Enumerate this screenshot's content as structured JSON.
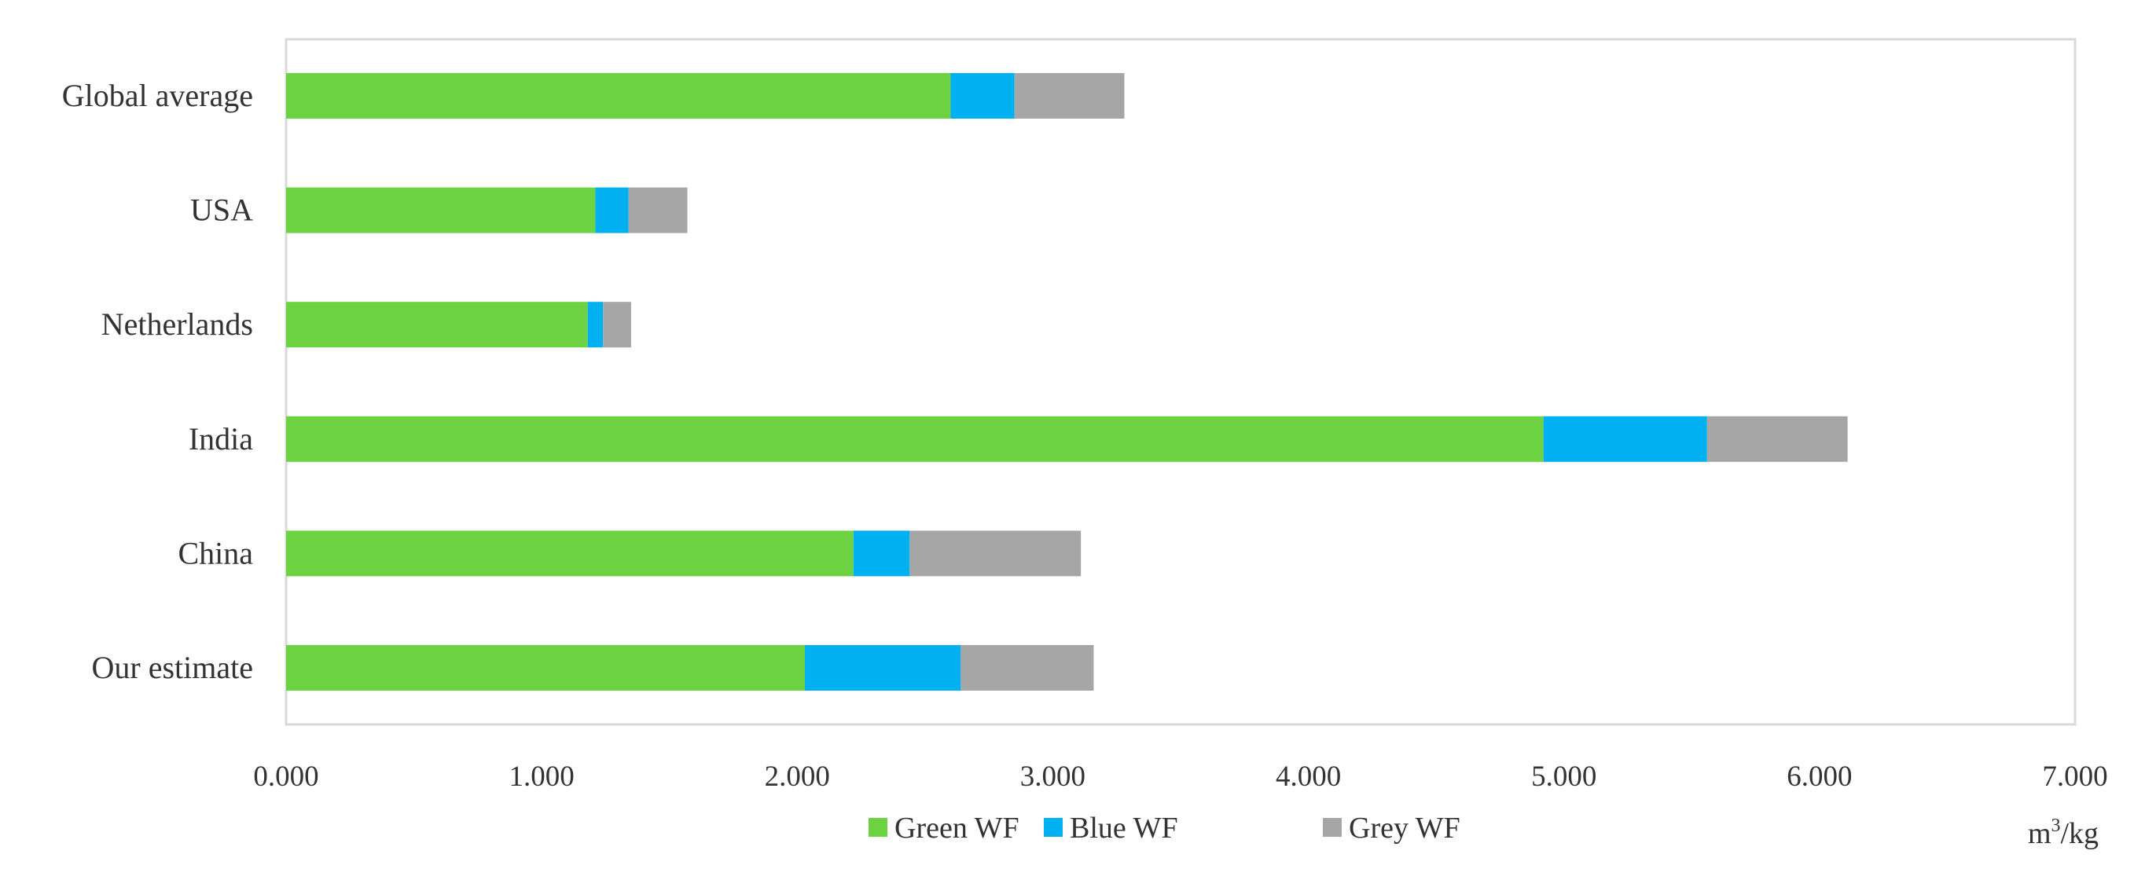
{
  "chart_data": {
    "type": "bar",
    "orientation": "horizontal",
    "stacked": true,
    "categories": [
      "Global average",
      "USA",
      "Netherlands",
      "India",
      "China",
      "Our estimate"
    ],
    "series": [
      {
        "name": "Green WF",
        "color": "#6dd343",
        "values": [
          2.6,
          1.21,
          1.18,
          4.92,
          2.22,
          2.03
        ]
      },
      {
        "name": "Blue WF",
        "color": "#00b0f0",
        "values": [
          0.25,
          0.13,
          0.06,
          0.64,
          0.22,
          0.61
        ]
      },
      {
        "name": "Grey WF",
        "color": "#a6a6a6",
        "values": [
          0.43,
          0.23,
          0.11,
          0.55,
          0.67,
          0.52
        ]
      }
    ],
    "x_ticks": [
      "0.000",
      "1.000",
      "2.000",
      "3.000",
      "4.000",
      "5.000",
      "6.000",
      "7.000"
    ],
    "xlim": [
      0,
      7
    ],
    "unit_label": {
      "base": "m",
      "sup": "3",
      "rest": "/kg"
    },
    "legend_position": "bottom",
    "grid": false
  }
}
